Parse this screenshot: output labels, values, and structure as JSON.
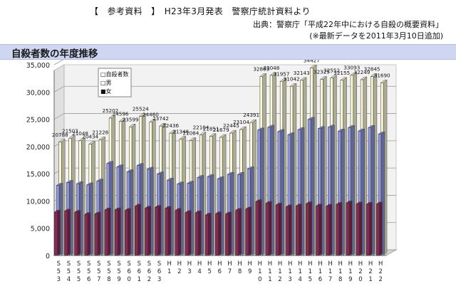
{
  "header": {
    "line1": "【　参考資料　】　H23年3月発表　警察庁統計資料より",
    "line2": "出典：警察庁「平成22年中における自殺の概要資料」",
    "line3": "(※最新データを2011年3月10日追加)"
  },
  "section_title": "自殺者数の年度推移",
  "chart_data": {
    "type": "bar",
    "title": "",
    "xlabel": "",
    "ylabel": "",
    "ylim": [
      0,
      35000
    ],
    "yticks": [
      "0",
      "5,000",
      "10,000",
      "15,000",
      "20,000",
      "25,000",
      "30,000",
      "35,000"
    ],
    "grid": true,
    "legend_position": "top-left",
    "categories": [
      "S53",
      "S54",
      "S55",
      "S56",
      "S57",
      "S58",
      "S59",
      "S60",
      "S61",
      "S62",
      "S63",
      "H1",
      "H2",
      "H3",
      "H4",
      "H5",
      "H6",
      "H7",
      "H8",
      "H9",
      "H10",
      "H11",
      "H12",
      "H13",
      "H14",
      "H15",
      "H16",
      "H17",
      "H18",
      "H19",
      "H20",
      "H21",
      "H22"
    ],
    "tick_labels_shown": [
      [
        "S",
        "5",
        "3"
      ],
      [
        "S",
        "5",
        "4"
      ],
      [
        "S",
        "5",
        "5"
      ],
      [
        "S",
        "5",
        "6"
      ],
      [
        "S",
        "5",
        "7"
      ],
      [
        "S",
        "5",
        "8"
      ],
      [
        "S",
        "5",
        "9"
      ],
      [
        "S",
        "6",
        "0"
      ],
      [
        "S",
        "6",
        "1"
      ],
      [
        "S",
        "6",
        "2"
      ],
      [
        "S",
        "6",
        "3"
      ],
      [
        "H",
        "1"
      ],
      [
        "H",
        "2"
      ],
      [
        "H",
        "3"
      ],
      [
        "H",
        "4"
      ],
      [
        "H",
        "5"
      ],
      [
        "H",
        "6"
      ],
      [
        "H",
        "7"
      ],
      [
        "H",
        "8"
      ],
      [
        "H",
        "9"
      ],
      [
        "H",
        "1",
        "0"
      ],
      [
        "H",
        "1",
        "1"
      ],
      [
        "H",
        "1",
        "2"
      ],
      [
        "H",
        "1",
        "3"
      ],
      [
        "H",
        "1",
        "4"
      ],
      [
        "H",
        "1",
        "5"
      ],
      [
        "H",
        "1",
        "6"
      ],
      [
        "H",
        "1",
        "7"
      ],
      [
        "H",
        "1",
        "8"
      ],
      [
        "H",
        "1",
        "9"
      ],
      [
        "H",
        "2",
        "0"
      ],
      [
        "H",
        "2",
        "1"
      ],
      [
        "H",
        "2",
        "2"
      ]
    ],
    "series": [
      {
        "name": "自殺者数",
        "color": "#fdfbd8",
        "values": [
          20788,
          21503,
          21048,
          20434,
          21228,
          25202,
          24596,
          23599,
          25524,
          24460,
          23742,
          22436,
          21346,
          21084,
          22104,
          21851,
          21679,
          22445,
          23104,
          24391,
          32863,
          33048,
          31957,
          31042,
          32143,
          34427,
          32325,
          32552,
          32155,
          33093,
          32249,
          32845,
          31690
        ],
        "labels": [
          "20788",
          "21503",
          "21048",
          "20434",
          "21228",
          "25202",
          "24596",
          "23599",
          "25524",
          "24460",
          "23742",
          "22436",
          "21346",
          "21084",
          "22104",
          "21851",
          "21679",
          "22445",
          "23104",
          "24391",
          "32863",
          "33048",
          "31957",
          "31042",
          "32143",
          "34427",
          "32325",
          "32552",
          "32155",
          "33093",
          "32249",
          "32845",
          "31690"
        ]
      },
      {
        "name": "男",
        "color": "#8f97d9",
        "values": [
          12859,
          13386,
          13155,
          12942,
          13654,
          16876,
          16251,
          15356,
          16497,
          15802,
          14934,
          13818,
          13102,
          13242,
          14296,
          14468,
          14058,
          14874,
          14853,
          15901,
          23013,
          23512,
          22727,
          22144,
          23080,
          24963,
          23272,
          23540,
          22813,
          23478,
          22831,
          23472,
          22283
        ]
      },
      {
        "name": "女",
        "color": "#862a56",
        "values": [
          7929,
          8117,
          7893,
          7492,
          7574,
          8326,
          8345,
          8243,
          9027,
          8658,
          8808,
          8618,
          8244,
          7842,
          7808,
          7383,
          7621,
          7571,
          8251,
          8490,
          9850,
          9536,
          9230,
          8898,
          9063,
          9464,
          9053,
          9012,
          9342,
          9615,
          9418,
          9373,
          9407
        ]
      }
    ],
    "legend": [
      "□自殺者数",
      "□男",
      "■女"
    ]
  }
}
